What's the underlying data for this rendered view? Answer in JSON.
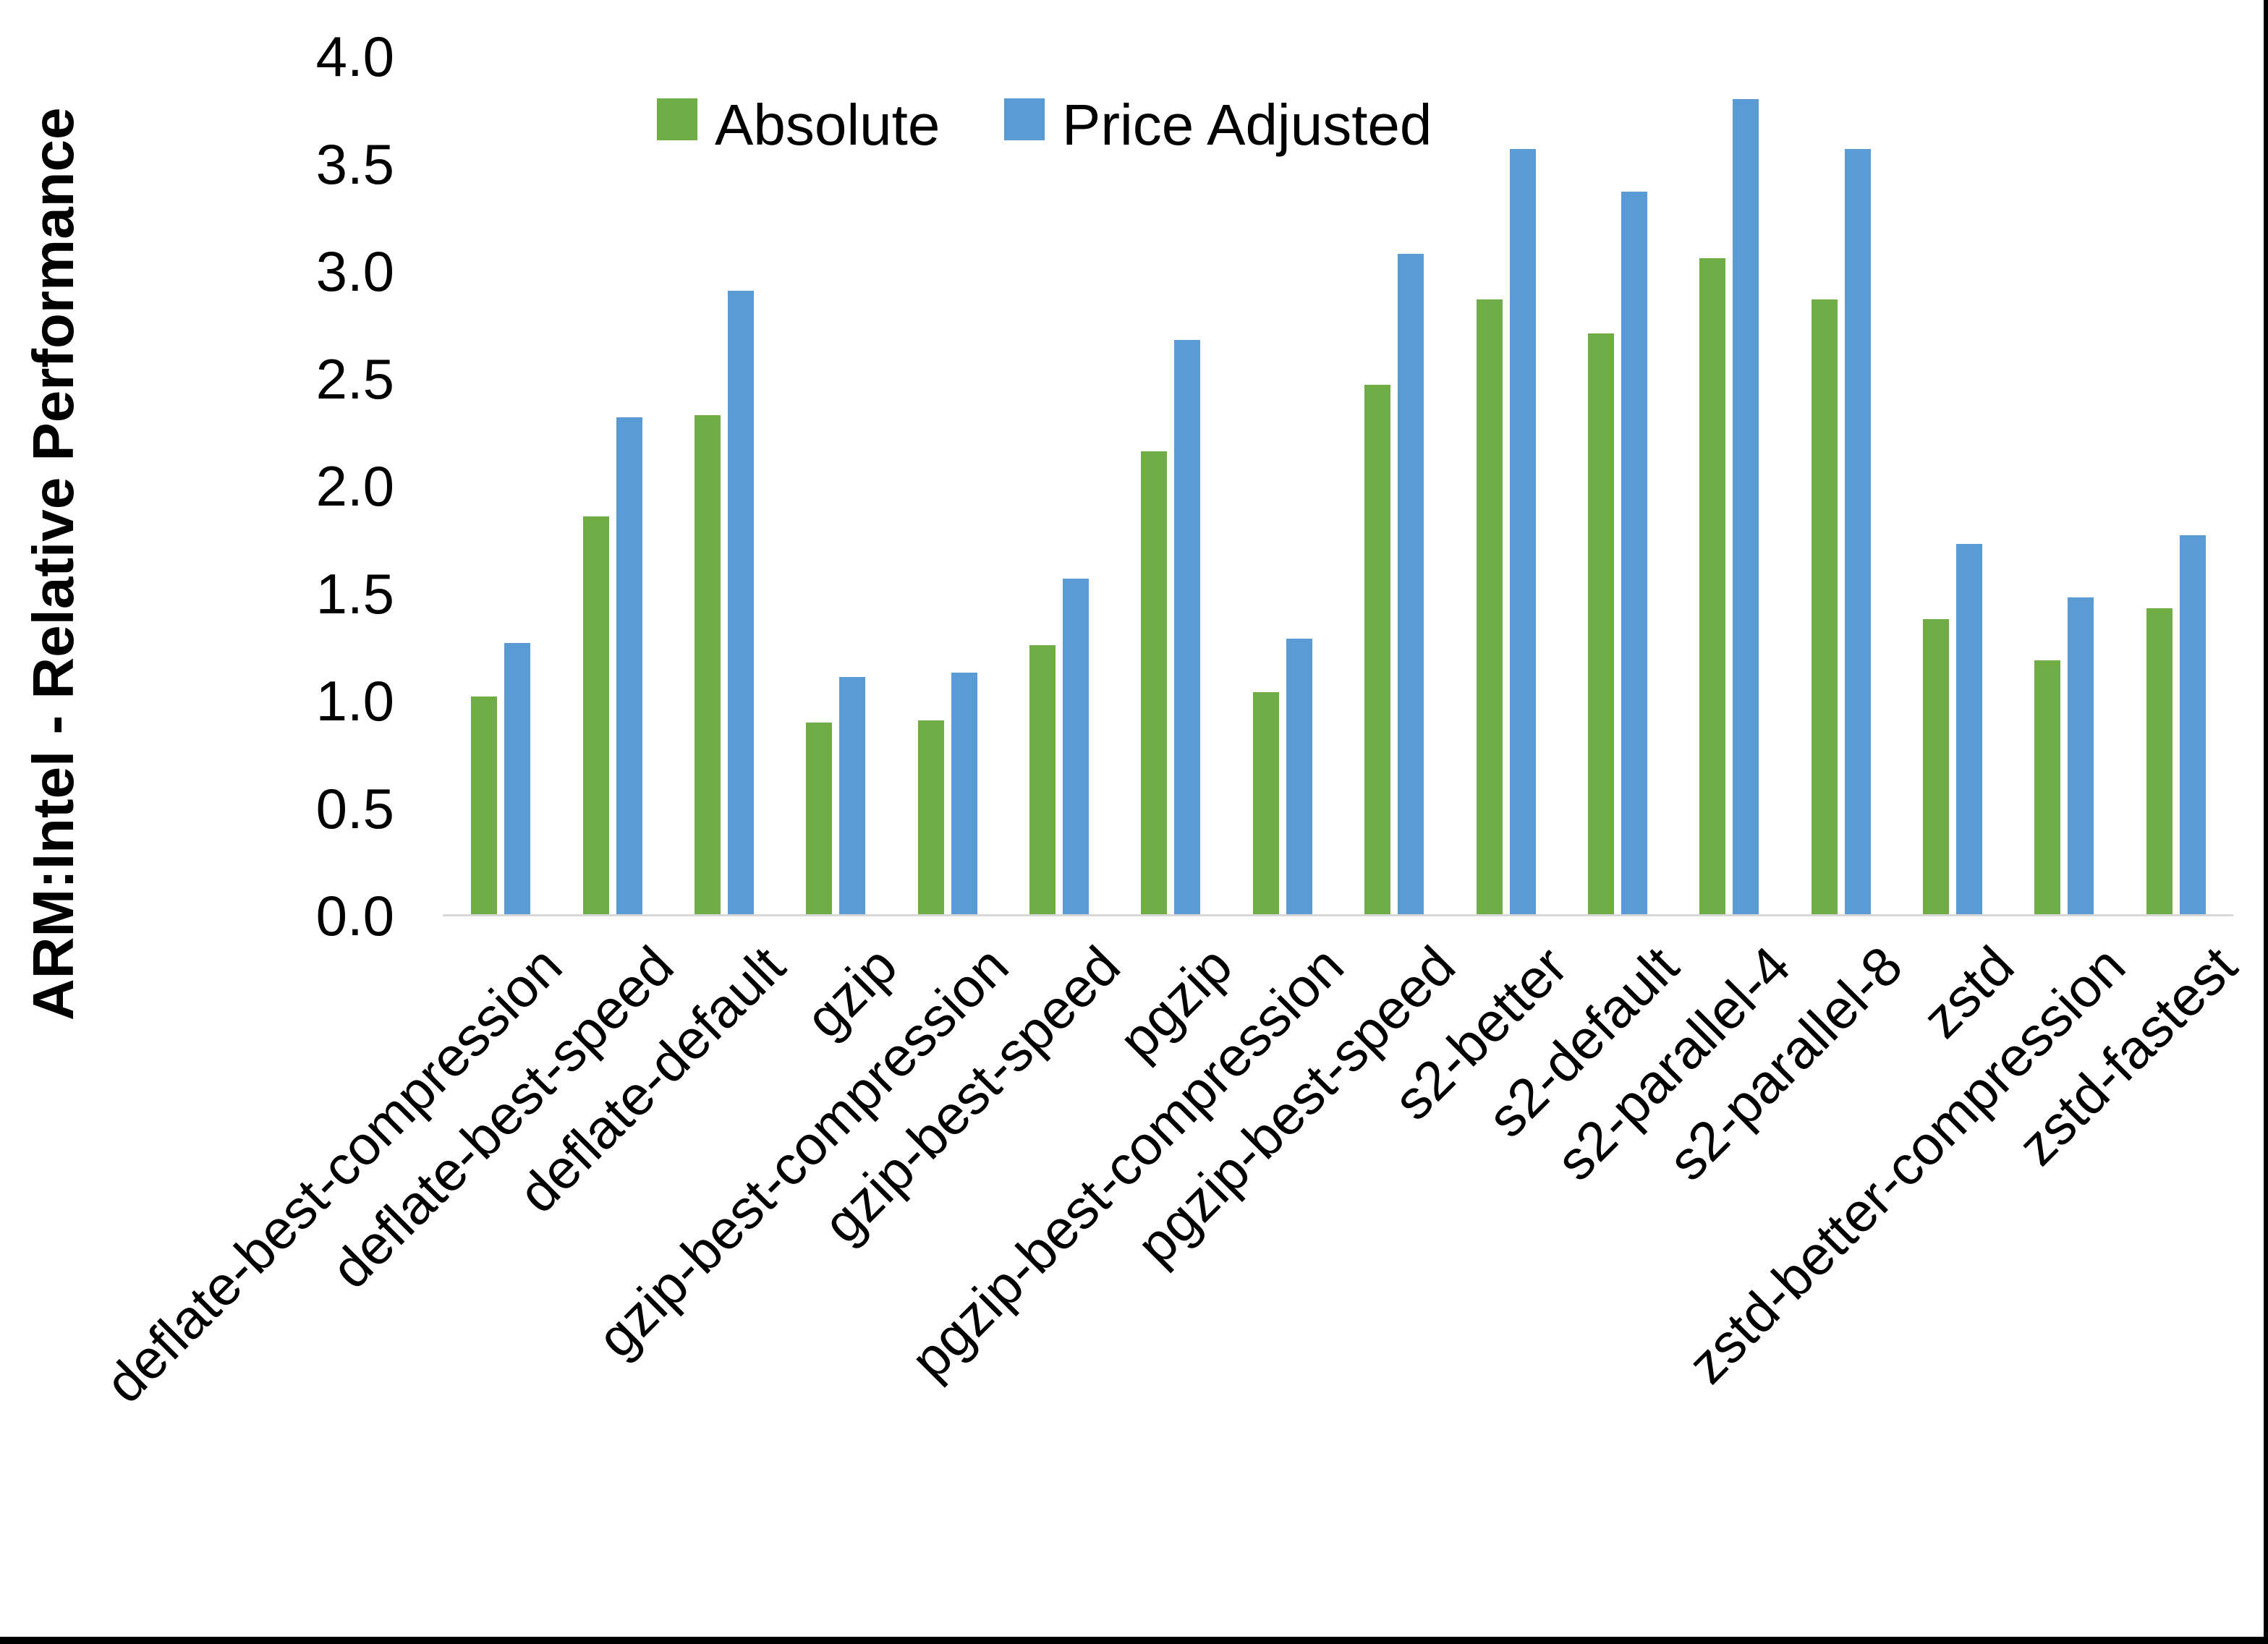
{
  "chart_data": {
    "type": "bar",
    "title": "",
    "xlabel": "",
    "ylabel": "ARM:Intel - Relative Performance",
    "ylim": [
      0,
      4.0
    ],
    "ytick_labels": [
      "0.0",
      "0.5",
      "1.0",
      "1.5",
      "2.0",
      "2.5",
      "3.0",
      "3.5",
      "4.0"
    ],
    "grid": false,
    "legend_position": "top",
    "categories": [
      "deflate-best-compression",
      "deflate-best-speed",
      "deflate-default",
      "gzip",
      "gzip-best-compression",
      "gzip-best-speed",
      "pgzip",
      "pgzip-best-compression",
      "pgzip-best-speed",
      "s2-better",
      "s2-default",
      "s2-parallel-4",
      "s2-parallel-8",
      "zstd",
      "zstd-better-compression",
      "zstd-fastest"
    ],
    "series": [
      {
        "name": "Absolute",
        "color": "#70AD47",
        "values": [
          1.02,
          1.86,
          2.33,
          0.9,
          0.91,
          1.26,
          2.16,
          1.04,
          2.47,
          2.87,
          2.71,
          3.06,
          2.87,
          1.38,
          1.19,
          1.43
        ]
      },
      {
        "name": "Price Adjusted",
        "color": "#5B9BD5",
        "values": [
          1.27,
          2.32,
          2.91,
          1.11,
          1.13,
          1.57,
          2.68,
          1.29,
          3.08,
          3.57,
          3.37,
          3.8,
          3.57,
          1.73,
          1.48,
          1.77
        ]
      }
    ],
    "axis_line_color": "#D9D9D9",
    "page_border_color": "#000000"
  }
}
